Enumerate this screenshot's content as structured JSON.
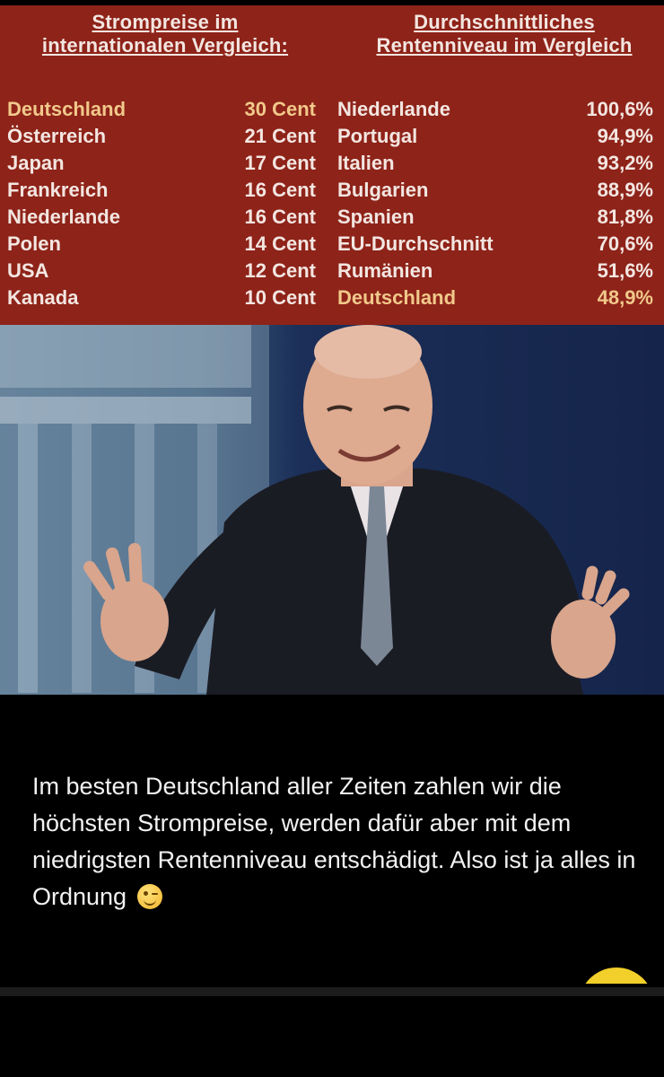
{
  "left_table": {
    "header_line1": "Strompreise im",
    "header_line2": "internationalen Vergleich:",
    "rows": [
      {
        "country": "Deutschland",
        "value": "30 Cent"
      },
      {
        "country": "Österreich",
        "value": "21 Cent"
      },
      {
        "country": "Japan",
        "value": "17 Cent"
      },
      {
        "country": "Frankreich",
        "value": "16 Cent"
      },
      {
        "country": "Niederlande",
        "value": "16 Cent"
      },
      {
        "country": "Polen",
        "value": "14 Cent"
      },
      {
        "country": "USA",
        "value": "12 Cent"
      },
      {
        "country": "Kanada",
        "value": "10 Cent"
      }
    ]
  },
  "right_table": {
    "header_line1": "Durchschnittliches",
    "header_line2": "Rentenniveau im Vergleich",
    "rows": [
      {
        "country": "Niederlande",
        "value": "100,6%"
      },
      {
        "country": "Portugal",
        "value": "94,9%"
      },
      {
        "country": "Italien",
        "value": "93,2%"
      },
      {
        "country": "Bulgarien",
        "value": "88,9%"
      },
      {
        "country": "Spanien",
        "value": "81,8%"
      },
      {
        "country": "EU-Durchschnitt",
        "value": "70,6%"
      },
      {
        "country": "Rumänien",
        "value": "51,6%"
      },
      {
        "country": "Deutschland",
        "value": "48,9%"
      }
    ]
  },
  "caption": {
    "text": "Im besten Deutschland aller Zeiten zahlen wir die höchsten Strompreise, werden dafür aber mit dem niedrigsten Rentenniveau entschädigt. Also ist ja alles in Ordnung",
    "emoji": "winking-face-icon"
  },
  "colors": {
    "panel": "#8e2319",
    "text": "#f3e6e1",
    "highlight": "#f1c98b",
    "background": "#000000"
  }
}
